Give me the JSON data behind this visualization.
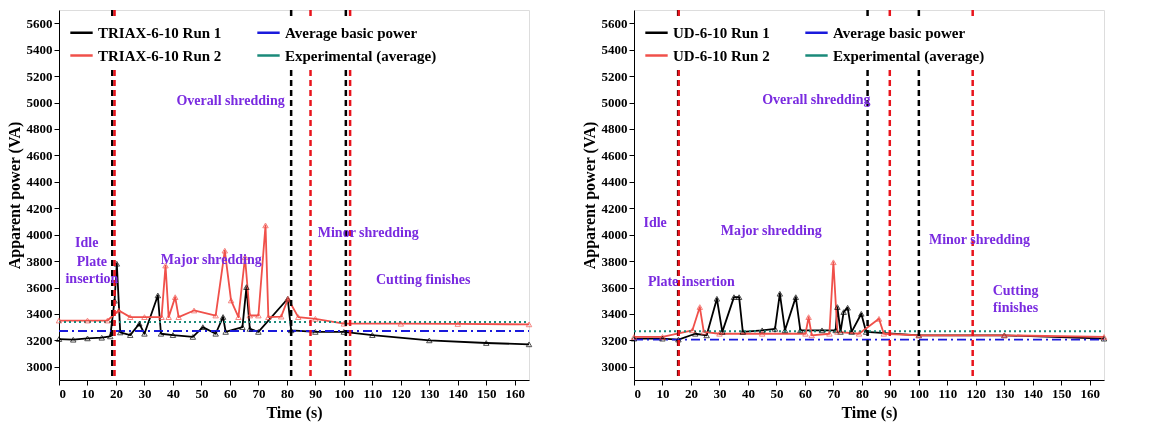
{
  "chart_data": [
    {
      "type": "line",
      "xlabel": "Time (s)",
      "ylabel": "Apparent power (VA)",
      "xlim": [
        0,
        165
      ],
      "ylim": [
        2900,
        5700
      ],
      "xticks": [
        0,
        10,
        20,
        30,
        40,
        50,
        60,
        70,
        80,
        90,
        100,
        110,
        120,
        130,
        140,
        150,
        160
      ],
      "yticks": [
        3000,
        3200,
        3400,
        3600,
        3800,
        4000,
        4200,
        4400,
        4600,
        4800,
        5000,
        5200,
        5400,
        5600
      ],
      "grid": false,
      "legend": "top left",
      "series": [
        {
          "name": "TRIAX-6-10 Run 1",
          "color": "#000000",
          "marker": "triangle",
          "line_style": "solid",
          "x": [
            0,
            5,
            10,
            15,
            18,
            19.5,
            20.3,
            21.5,
            25,
            28.2,
            30,
            34.7,
            35.8,
            40,
            47,
            50.5,
            55,
            57.6,
            58.5,
            64.4,
            65.8,
            67,
            70,
            80.3,
            81.5,
            90,
            100,
            110,
            130,
            150,
            165
          ],
          "values": [
            3210,
            3205,
            3215,
            3220,
            3230,
            3500,
            3780,
            3260,
            3240,
            3326,
            3250,
            3540,
            3250,
            3240,
            3226,
            3300,
            3250,
            3377,
            3264,
            3300,
            3603,
            3287,
            3264,
            3515,
            3276,
            3264,
            3264,
            3240,
            3200,
            3180,
            3170
          ]
        },
        {
          "name": "TRIAX-6-10 Run 2",
          "color": "#f0504a",
          "marker": "triangle",
          "line_style": "solid",
          "x": [
            0,
            10,
            17,
            21,
            25,
            30,
            36,
            37.4,
            38.5,
            40.8,
            42,
            47.4,
            55,
            58.2,
            60.4,
            63,
            65.3,
            67,
            70,
            72.5,
            73.5,
            78,
            80.4,
            84,
            90,
            100,
            120,
            140,
            165
          ],
          "values": [
            3350,
            3350,
            3350,
            3426,
            3376,
            3376,
            3376,
            3766,
            3376,
            3527,
            3376,
            3426,
            3388,
            3879,
            3502,
            3376,
            3829,
            3388,
            3388,
            4070,
            3376,
            3380,
            3515,
            3376,
            3363,
            3326,
            3326,
            3324,
            3321
          ]
        },
        {
          "name": "Average basic power",
          "color": "#1a1adc",
          "marker": "none",
          "line_style": "dashed",
          "x": [
            0,
            165
          ],
          "values": [
            3271,
            3271
          ]
        },
        {
          "name": "Experimental (average)",
          "color": "#1a8a7a",
          "marker": "none",
          "line_style": "dotted",
          "x": [
            0,
            165
          ],
          "values": [
            3339,
            3339
          ]
        }
      ],
      "ref_lines": [
        {
          "axis": "x",
          "value": 18.7,
          "color": "#000000",
          "line_style": "dashed"
        },
        {
          "axis": "x",
          "value": 19.5,
          "color": "#e8141c",
          "line_style": "dashed"
        },
        {
          "axis": "x",
          "value": 81.5,
          "color": "#000000",
          "line_style": "dashed"
        },
        {
          "axis": "x",
          "value": 88.3,
          "color": "#e8141c",
          "line_style": "dashed"
        },
        {
          "axis": "x",
          "value": 100.7,
          "color": "#000000",
          "line_style": "dashed"
        },
        {
          "axis": "x",
          "value": 102.2,
          "color": "#e8141c",
          "line_style": "dashed"
        }
      ],
      "annotations": [
        "Overall shredding",
        "Idle",
        "Major shredding",
        "Minor shredding",
        "Plate\ninsertion",
        "Cutting finishes"
      ]
    },
    {
      "type": "line",
      "xlabel": "Time (s)",
      "ylabel": "Apparent power (VA)",
      "xlim": [
        0,
        165
      ],
      "ylim": [
        2900,
        5700
      ],
      "xticks": [
        0,
        10,
        20,
        30,
        40,
        50,
        60,
        70,
        80,
        90,
        100,
        110,
        120,
        130,
        140,
        150,
        160
      ],
      "yticks": [
        3000,
        3200,
        3400,
        3600,
        3800,
        4000,
        4200,
        4400,
        4600,
        4800,
        5000,
        5200,
        5400,
        5600
      ],
      "grid": false,
      "legend": "top left",
      "series": [
        {
          "name": "UD-6-10 Run 1",
          "color": "#000000",
          "marker": "triangle",
          "line_style": "solid",
          "x": [
            0,
            10,
            15.6,
            21.5,
            25.5,
            29.1,
            31,
            35.1,
            36.9,
            38.2,
            45,
            49.5,
            51.2,
            53,
            56.8,
            58.4,
            66,
            70.8,
            71.4,
            72.5,
            73.6,
            75,
            76.4,
            79.8,
            81.5,
            100,
            130,
            165
          ],
          "values": [
            3213,
            3213,
            3206,
            3250,
            3238,
            3515,
            3264,
            3527,
            3527,
            3264,
            3276,
            3287,
            3553,
            3276,
            3527,
            3276,
            3276,
            3276,
            3452,
            3264,
            3414,
            3447,
            3264,
            3401,
            3264,
            3238,
            3238,
            3213
          ]
        },
        {
          "name": "UD-6-10 Run 2",
          "color": "#f0504a",
          "marker": "triangle",
          "line_style": "solid",
          "x": [
            0,
            10,
            20.5,
            23.1,
            24.5,
            30,
            45,
            60.2,
            61.3,
            62.4,
            68.6,
            70.0,
            71.4,
            79,
            86.0,
            87.7,
            100,
            130,
            165
          ],
          "values": [
            3226,
            3226,
            3276,
            3452,
            3264,
            3250,
            3250,
            3250,
            3376,
            3238,
            3250,
            3791,
            3264,
            3250,
            3363,
            3250,
            3238,
            3238,
            3226
          ]
        },
        {
          "name": "Average basic power",
          "color": "#1a1adc",
          "marker": "none",
          "line_style": "dashed",
          "x": [
            0,
            165
          ],
          "values": [
            3206,
            3206
          ]
        },
        {
          "name": "Experimental (average)",
          "color": "#1a8a7a",
          "marker": "none",
          "line_style": "dotted",
          "x": [
            0,
            165
          ],
          "values": [
            3269,
            3269
          ]
        }
      ],
      "ref_lines": [
        {
          "axis": "x",
          "value": 15.5,
          "color": "#000000",
          "line_style": "dashed"
        },
        {
          "axis": "x",
          "value": 15.7,
          "color": "#e8141c",
          "line_style": "dashed"
        },
        {
          "axis": "x",
          "value": 82.0,
          "color": "#000000",
          "line_style": "dashed"
        },
        {
          "axis": "x",
          "value": 89.8,
          "color": "#e8141c",
          "line_style": "dashed"
        },
        {
          "axis": "x",
          "value": 100.0,
          "color": "#000000",
          "line_style": "dashed"
        },
        {
          "axis": "x",
          "value": 118.9,
          "color": "#e8141c",
          "line_style": "dashed"
        }
      ],
      "annotations": [
        "Overall shredding",
        "Idle",
        "Major shredding",
        "Minor shredding",
        "Plate insertion",
        "Cutting\nfinishes"
      ]
    }
  ]
}
